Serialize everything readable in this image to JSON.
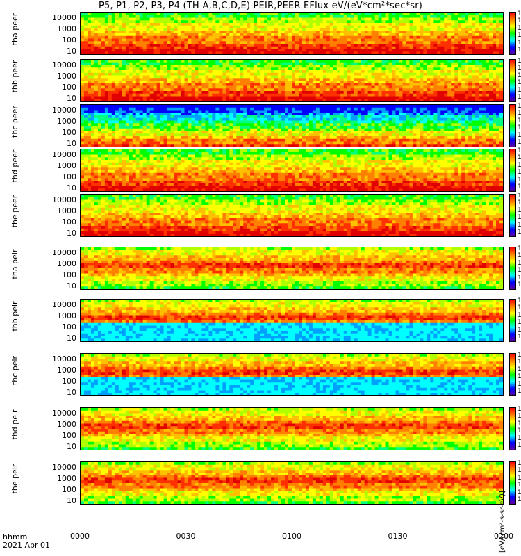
{
  "title": "P5, P1, P2, P3, P4 (TH-A,B,C,D,E) PEIR,PEER EFlux eV/(eV*cm²*sec*sr)",
  "units_label": "[eV/(cm²-s-sr-eV)]",
  "footer": {
    "hhmm": "hhmm",
    "date": "2021 Apr 01"
  },
  "x_ticks": [
    "0000",
    "0030",
    "0100",
    "0130",
    "0200"
  ],
  "y_ticks": [
    "10000",
    "1000",
    "100",
    "10"
  ],
  "colorbar_ticks": [
    "10⁸",
    "10⁷",
    "10⁶",
    "10⁵",
    "10⁴",
    "10³"
  ],
  "chart_data": {
    "type": "heatmap",
    "title": "P5, P1, P2, P3, P4 (TH-A,B,C,D,E) PEIR,PEER EFlux eV/(eV*cm²*sec*sr)",
    "xlabel": "hhmm",
    "x_range": [
      "0000",
      "0200"
    ],
    "y_scale": "log",
    "ylim": [
      5,
      30000
    ],
    "ylabel_unit": "eV",
    "colorbar_scale": "log",
    "panels": [
      {
        "probe": "tha",
        "species": "peer",
        "label": "tha peer"
      },
      {
        "probe": "thb",
        "species": "peer",
        "label": "thb peer"
      },
      {
        "probe": "thc",
        "species": "peer",
        "label": "thc peer"
      },
      {
        "probe": "thd",
        "species": "peer",
        "label": "thd peer"
      },
      {
        "probe": "the",
        "species": "peer",
        "label": "the peer"
      },
      {
        "probe": "tha",
        "species": "peir",
        "label": "tha peir"
      },
      {
        "probe": "thb",
        "species": "peir",
        "label": "thb peir"
      },
      {
        "probe": "thc",
        "species": "peir",
        "label": "thc peir"
      },
      {
        "probe": "thd",
        "species": "peir",
        "label": "thd peir"
      },
      {
        "probe": "the",
        "species": "peir",
        "label": "the peir"
      }
    ]
  },
  "colors": {
    "red": "#ff0000",
    "orange": "#ff8000",
    "yellow": "#ffff00",
    "green": "#00ff00",
    "cyan": "#00ffff",
    "blue": "#0000ff"
  }
}
